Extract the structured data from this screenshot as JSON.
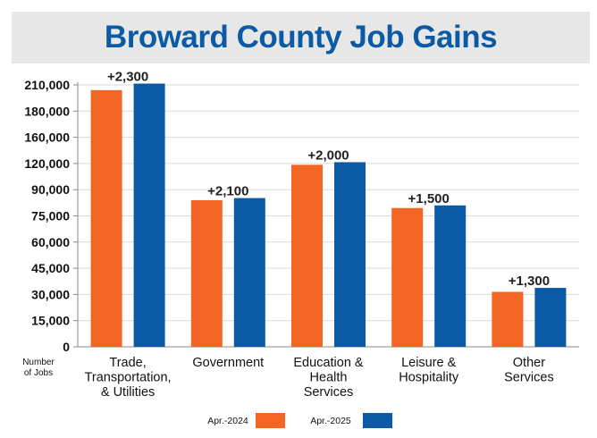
{
  "title": "Broward County Job Gains",
  "colors": {
    "title": "#0b5aa5",
    "series_2024": "#f26522",
    "series_2025": "#0a5aa6"
  },
  "chart_data": {
    "type": "bar",
    "title": "Broward County Job Gains",
    "ylabel": [
      "Number",
      "of Jobs"
    ],
    "xlabel": "",
    "y_ticks": [
      "0",
      "15,000",
      "30,000",
      "45,000",
      "60,000",
      "75,000",
      "90,000",
      "120,000",
      "160,000",
      "180,000",
      "210,000"
    ],
    "categories": [
      [
        "Trade,",
        "Transportation,",
        "& Utilities"
      ],
      [
        "Government"
      ],
      [
        "Education &",
        "Health",
        "Services"
      ],
      [
        "Leisure &",
        "Hospitality"
      ],
      [
        "Other",
        "Services"
      ]
    ],
    "series": [
      {
        "name": "Apr.-2024",
        "level_ticks": [
          9.8,
          5.6,
          6.95,
          5.3,
          2.1
        ]
      },
      {
        "name": "Apr.-2025",
        "level_ticks": [
          10.05,
          5.68,
          7.05,
          5.4,
          2.25
        ]
      }
    ],
    "data_labels": [
      "+2,300",
      "+2,100",
      "+2,000",
      "+1,500",
      "+1,300"
    ],
    "legend": {
      "position": "bottom"
    },
    "grid": true
  }
}
